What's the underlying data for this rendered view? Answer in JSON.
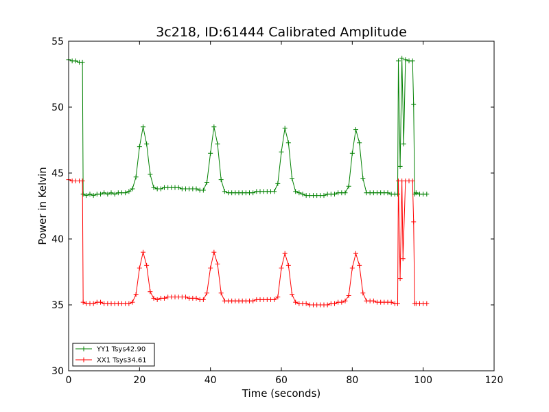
{
  "chart_data": {
    "type": "line",
    "title": "3c218, ID:61444 Calibrated Amplitude",
    "xlabel": "Time (seconds)",
    "ylabel": "Power in Kelvin",
    "xlim": [
      0,
      120
    ],
    "ylim": [
      30,
      55
    ],
    "xticks": [
      0,
      20,
      40,
      60,
      80,
      100,
      120
    ],
    "yticks": [
      30,
      35,
      40,
      45,
      50,
      55
    ],
    "grid": false,
    "legend_position": "lower-left",
    "marker": "+",
    "series": [
      {
        "name": "YY1 Tsys42.90",
        "color": "#008000",
        "points": [
          [
            0,
            53.6
          ],
          [
            1,
            53.5
          ],
          [
            2,
            53.5
          ],
          [
            3,
            53.4
          ],
          [
            3.9,
            53.4
          ],
          [
            4.1,
            43.4
          ],
          [
            5,
            43.3
          ],
          [
            6,
            43.4
          ],
          [
            7,
            43.3
          ],
          [
            8,
            43.4
          ],
          [
            9,
            43.4
          ],
          [
            10,
            43.5
          ],
          [
            11,
            43.4
          ],
          [
            12,
            43.5
          ],
          [
            13,
            43.4
          ],
          [
            14,
            43.5
          ],
          [
            15,
            43.5
          ],
          [
            16,
            43.5
          ],
          [
            17,
            43.6
          ],
          [
            18,
            43.8
          ],
          [
            19,
            44.7
          ],
          [
            20,
            47.0
          ],
          [
            21,
            48.5
          ],
          [
            22,
            47.2
          ],
          [
            23,
            44.9
          ],
          [
            24,
            43.9
          ],
          [
            25,
            43.8
          ],
          [
            26,
            43.8
          ],
          [
            27,
            43.9
          ],
          [
            28,
            43.9
          ],
          [
            29,
            43.9
          ],
          [
            30,
            43.9
          ],
          [
            31,
            43.9
          ],
          [
            32,
            43.8
          ],
          [
            33,
            43.8
          ],
          [
            34,
            43.8
          ],
          [
            35,
            43.8
          ],
          [
            36,
            43.8
          ],
          [
            37,
            43.7
          ],
          [
            38,
            43.7
          ],
          [
            39,
            44.3
          ],
          [
            40,
            46.5
          ],
          [
            41,
            48.5
          ],
          [
            42,
            47.2
          ],
          [
            43,
            44.5
          ],
          [
            44,
            43.6
          ],
          [
            45,
            43.5
          ],
          [
            46,
            43.5
          ],
          [
            47,
            43.5
          ],
          [
            48,
            43.5
          ],
          [
            49,
            43.5
          ],
          [
            50,
            43.5
          ],
          [
            51,
            43.5
          ],
          [
            52,
            43.5
          ],
          [
            53,
            43.6
          ],
          [
            54,
            43.6
          ],
          [
            55,
            43.6
          ],
          [
            56,
            43.6
          ],
          [
            57,
            43.6
          ],
          [
            58,
            43.6
          ],
          [
            59,
            44.2
          ],
          [
            60,
            46.6
          ],
          [
            61,
            48.4
          ],
          [
            62,
            47.3
          ],
          [
            63,
            44.6
          ],
          [
            64,
            43.6
          ],
          [
            65,
            43.5
          ],
          [
            66,
            43.4
          ],
          [
            67,
            43.3
          ],
          [
            68,
            43.3
          ],
          [
            69,
            43.3
          ],
          [
            70,
            43.3
          ],
          [
            71,
            43.3
          ],
          [
            72,
            43.3
          ],
          [
            73,
            43.4
          ],
          [
            74,
            43.4
          ],
          [
            75,
            43.4
          ],
          [
            76,
            43.5
          ],
          [
            77,
            43.5
          ],
          [
            78,
            43.5
          ],
          [
            79,
            44.0
          ],
          [
            80,
            46.5
          ],
          [
            81,
            48.3
          ],
          [
            82,
            47.3
          ],
          [
            83,
            44.6
          ],
          [
            84,
            43.5
          ],
          [
            85,
            43.5
          ],
          [
            86,
            43.5
          ],
          [
            87,
            43.5
          ],
          [
            88,
            43.5
          ],
          [
            89,
            43.5
          ],
          [
            90,
            43.5
          ],
          [
            91,
            43.4
          ],
          [
            92,
            43.4
          ],
          [
            92.8,
            43.4
          ],
          [
            93,
            53.5
          ],
          [
            93.5,
            45.5
          ],
          [
            94,
            53.7
          ],
          [
            94.5,
            47.2
          ],
          [
            95,
            53.6
          ],
          [
            96,
            53.5
          ],
          [
            97,
            53.5
          ],
          [
            97.3,
            50.2
          ],
          [
            97.6,
            43.4
          ],
          [
            98,
            43.5
          ],
          [
            99,
            43.4
          ],
          [
            100,
            43.4
          ],
          [
            101,
            43.4
          ]
        ]
      },
      {
        "name": "XX1 Tsys34.61",
        "color": "#ff0000",
        "points": [
          [
            0,
            44.5
          ],
          [
            1,
            44.4
          ],
          [
            2,
            44.4
          ],
          [
            3,
            44.4
          ],
          [
            3.9,
            44.4
          ],
          [
            4.1,
            35.2
          ],
          [
            5,
            35.1
          ],
          [
            6,
            35.1
          ],
          [
            7,
            35.1
          ],
          [
            8,
            35.2
          ],
          [
            9,
            35.2
          ],
          [
            10,
            35.1
          ],
          [
            11,
            35.1
          ],
          [
            12,
            35.1
          ],
          [
            13,
            35.1
          ],
          [
            14,
            35.1
          ],
          [
            15,
            35.1
          ],
          [
            16,
            35.1
          ],
          [
            17,
            35.1
          ],
          [
            18,
            35.2
          ],
          [
            19,
            35.8
          ],
          [
            20,
            37.8
          ],
          [
            21,
            39.0
          ],
          [
            22,
            38.0
          ],
          [
            23,
            36.0
          ],
          [
            24,
            35.5
          ],
          [
            25,
            35.4
          ],
          [
            26,
            35.5
          ],
          [
            27,
            35.5
          ],
          [
            28,
            35.6
          ],
          [
            29,
            35.6
          ],
          [
            30,
            35.6
          ],
          [
            31,
            35.6
          ],
          [
            32,
            35.6
          ],
          [
            33,
            35.6
          ],
          [
            34,
            35.5
          ],
          [
            35,
            35.5
          ],
          [
            36,
            35.5
          ],
          [
            37,
            35.4
          ],
          [
            38,
            35.4
          ],
          [
            39,
            35.9
          ],
          [
            40,
            37.8
          ],
          [
            41,
            39.0
          ],
          [
            42,
            38.1
          ],
          [
            43,
            35.9
          ],
          [
            44,
            35.3
          ],
          [
            45,
            35.3
          ],
          [
            46,
            35.3
          ],
          [
            47,
            35.3
          ],
          [
            48,
            35.3
          ],
          [
            49,
            35.3
          ],
          [
            50,
            35.3
          ],
          [
            51,
            35.3
          ],
          [
            52,
            35.3
          ],
          [
            53,
            35.4
          ],
          [
            54,
            35.4
          ],
          [
            55,
            35.4
          ],
          [
            56,
            35.4
          ],
          [
            57,
            35.4
          ],
          [
            58,
            35.4
          ],
          [
            59,
            35.6
          ],
          [
            60,
            37.8
          ],
          [
            61,
            38.9
          ],
          [
            62,
            38.0
          ],
          [
            63,
            35.8
          ],
          [
            64,
            35.2
          ],
          [
            65,
            35.1
          ],
          [
            66,
            35.1
          ],
          [
            67,
            35.1
          ],
          [
            68,
            35.0
          ],
          [
            69,
            35.0
          ],
          [
            70,
            35.0
          ],
          [
            71,
            35.0
          ],
          [
            72,
            35.0
          ],
          [
            73,
            35.0
          ],
          [
            74,
            35.1
          ],
          [
            75,
            35.1
          ],
          [
            76,
            35.2
          ],
          [
            77,
            35.2
          ],
          [
            78,
            35.3
          ],
          [
            79,
            35.7
          ],
          [
            80,
            37.8
          ],
          [
            81,
            38.9
          ],
          [
            82,
            38.0
          ],
          [
            83,
            35.9
          ],
          [
            84,
            35.3
          ],
          [
            85,
            35.3
          ],
          [
            86,
            35.3
          ],
          [
            87,
            35.2
          ],
          [
            88,
            35.2
          ],
          [
            89,
            35.2
          ],
          [
            90,
            35.2
          ],
          [
            91,
            35.2
          ],
          [
            92,
            35.1
          ],
          [
            92.8,
            35.1
          ],
          [
            93,
            44.4
          ],
          [
            93.5,
            37.0
          ],
          [
            94,
            44.4
          ],
          [
            94.3,
            38.5
          ],
          [
            95,
            44.4
          ],
          [
            96,
            44.4
          ],
          [
            97,
            44.4
          ],
          [
            97.3,
            41.3
          ],
          [
            97.6,
            35.1
          ],
          [
            98,
            35.1
          ],
          [
            99,
            35.1
          ],
          [
            100,
            35.1
          ],
          [
            101,
            35.1
          ]
        ]
      }
    ]
  }
}
